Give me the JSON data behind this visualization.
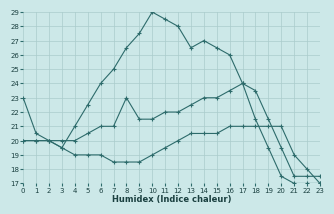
{
  "xlabel": "Humidex (Indice chaleur)",
  "bg_color": "#cce8e8",
  "grid_color": "#aacccc",
  "line_color": "#2d6b6b",
  "line1_x": [
    0,
    1,
    2,
    3,
    4,
    5,
    6,
    7,
    8,
    9,
    10,
    11,
    12,
    13,
    14,
    15,
    16,
    17,
    18,
    19,
    20,
    21,
    22,
    23
  ],
  "line1_y": [
    23,
    20.5,
    20,
    19.5,
    21,
    22.5,
    24,
    25,
    26.5,
    27.5,
    29,
    28.5,
    28,
    26.5,
    27,
    26.5,
    26,
    24,
    21.5,
    19.5,
    17.5,
    17,
    17,
    17
  ],
  "line2_x": [
    0,
    1,
    2,
    3,
    4,
    5,
    6,
    7,
    8,
    9,
    10,
    11,
    12,
    13,
    14,
    15,
    16,
    17,
    18,
    19,
    20,
    21,
    22,
    23
  ],
  "line2_y": [
    20,
    20,
    20,
    20,
    20,
    20.5,
    21,
    21,
    23,
    21.5,
    21.5,
    22,
    22,
    22.5,
    23,
    23,
    23.5,
    24,
    23.5,
    21.5,
    19.5,
    17.5,
    17.5,
    17.5
  ],
  "line3_x": [
    0,
    1,
    2,
    3,
    4,
    5,
    6,
    7,
    8,
    9,
    10,
    11,
    12,
    13,
    14,
    15,
    16,
    17,
    18,
    19,
    20,
    21,
    22,
    23
  ],
  "line3_y": [
    20,
    20,
    20,
    19.5,
    19,
    19,
    19,
    18.5,
    18.5,
    18.5,
    19,
    19.5,
    20,
    20.5,
    20.5,
    20.5,
    21,
    21,
    21,
    21,
    21,
    19,
    18,
    17
  ],
  "ylim_min": 17,
  "ylim_max": 29,
  "xlim_min": 0,
  "xlim_max": 23,
  "yticks": [
    17,
    18,
    19,
    20,
    21,
    22,
    23,
    24,
    25,
    26,
    27,
    28,
    29
  ],
  "xticks": [
    0,
    1,
    2,
    3,
    4,
    5,
    6,
    7,
    8,
    9,
    10,
    11,
    12,
    13,
    14,
    15,
    16,
    17,
    18,
    19,
    20,
    21,
    22,
    23
  ],
  "xlabel_fontsize": 6,
  "tick_fontsize": 5,
  "linewidth": 0.8,
  "markersize": 2.5,
  "markeredgewidth": 0.8
}
